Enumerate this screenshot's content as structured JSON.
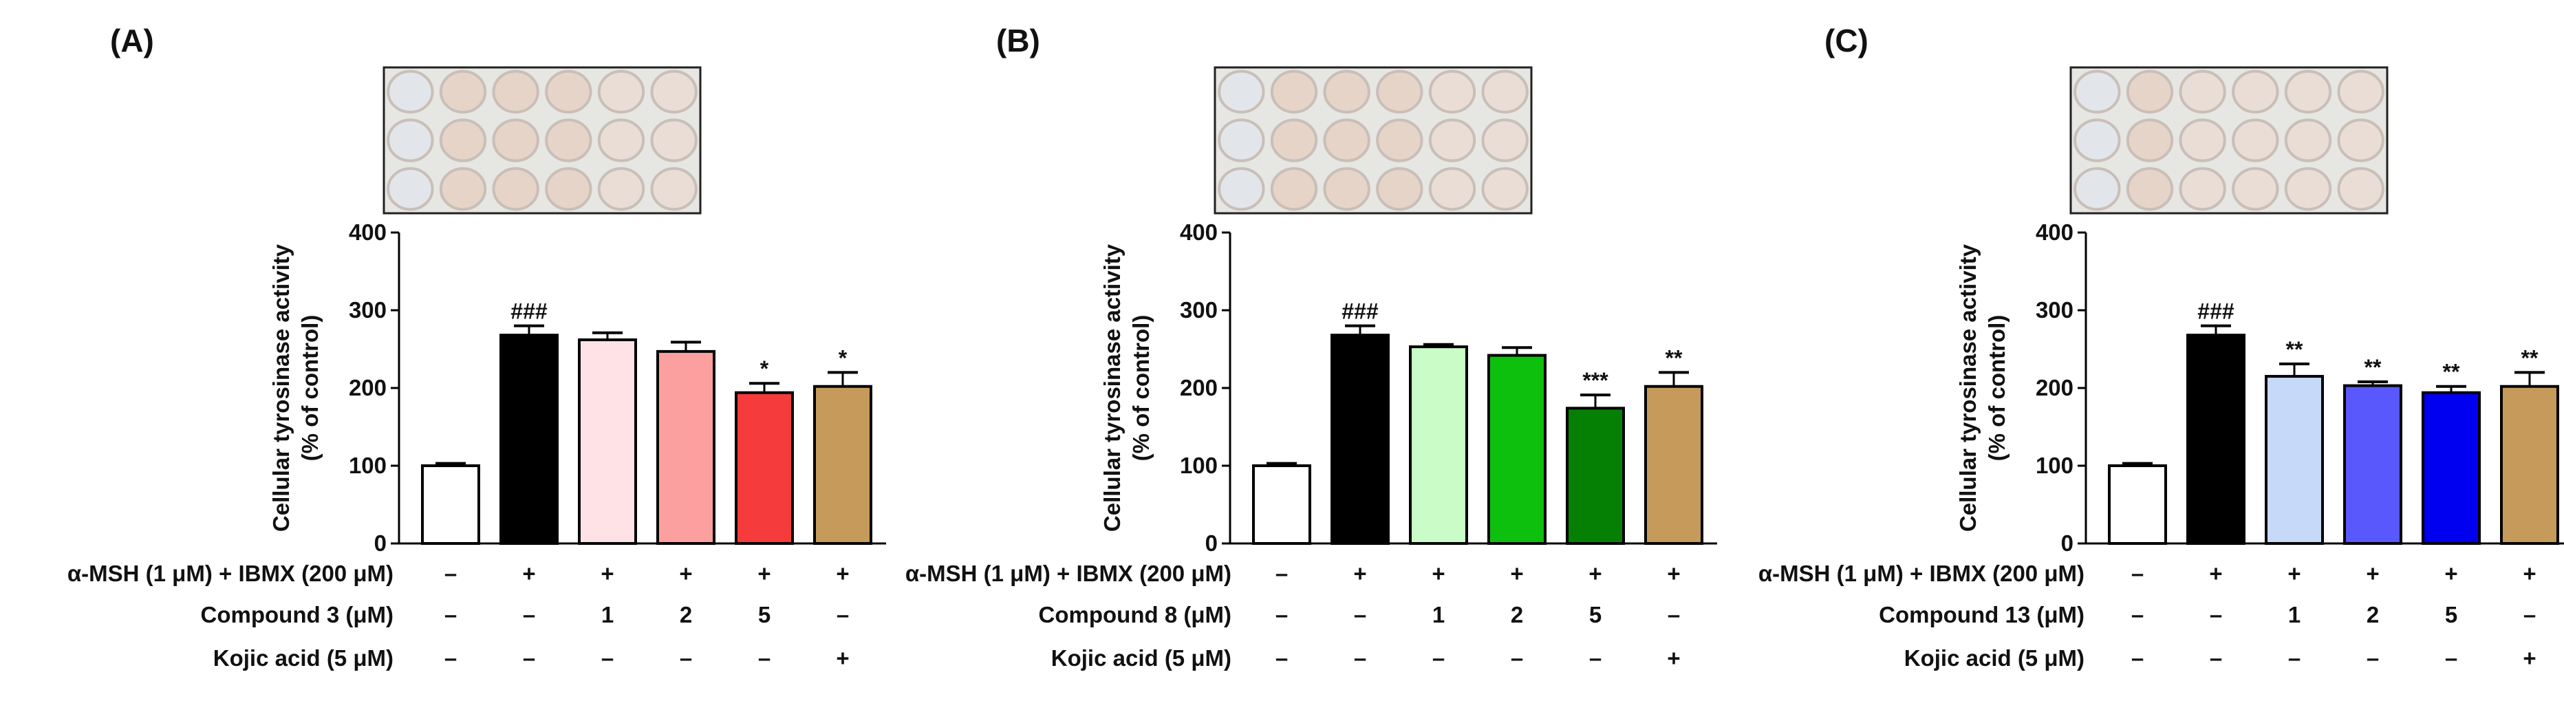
{
  "colors": {
    "axis": "#000000",
    "plate_bg": "#e6e6e3",
    "plate_border": "#222222",
    "well_rim": "#c9bfb8",
    "well_fill": "#eadcd5"
  },
  "chart_data": [
    {
      "type": "bar",
      "panel_label": "(A)",
      "title": "",
      "xlabel": "",
      "ylabel": "Cellular tyrosinase activity",
      "ylabel_sub": "(% of control)",
      "ylim": [
        0,
        400
      ],
      "yticks": [
        "0",
        "100",
        "200",
        "300",
        "400"
      ],
      "categories": [
        "Control",
        "α-MSH + IBMX",
        "Compound 3 1 μM",
        "Compound 3 2 μM",
        "Compound 3 5 μM",
        "Kojic acid 5 μM"
      ],
      "values": [
        100,
        268,
        262,
        247,
        194,
        202
      ],
      "errors": [
        3,
        12,
        9,
        12,
        12,
        18
      ],
      "bar_colors": [
        "#ffffff",
        "#000000",
        "#ffe2e6",
        "#fb9f9f",
        "#f53b3b",
        "#c59a5a"
      ],
      "annotations": [
        "",
        "###",
        "",
        "",
        "*",
        "*"
      ],
      "table": {
        "rows": [
          {
            "label": "α-MSH (1 μM) + IBMX (200 μM)",
            "cells": [
              "–",
              "+",
              "+",
              "+",
              "+",
              "+"
            ]
          },
          {
            "label": "Compound 3 (μM)",
            "cells": [
              "–",
              "–",
              "1",
              "2",
              "5",
              "–"
            ]
          },
          {
            "label": "Kojic acid (5 μM)",
            "cells": [
              "–",
              "–",
              "–",
              "–",
              "–",
              "+"
            ]
          }
        ]
      }
    },
    {
      "type": "bar",
      "panel_label": "(B)",
      "title": "",
      "xlabel": "",
      "ylabel": "Cellular tyrosinase activity",
      "ylabel_sub": "(% of control)",
      "ylim": [
        0,
        400
      ],
      "yticks": [
        "0",
        "100",
        "200",
        "300",
        "400"
      ],
      "categories": [
        "Control",
        "α-MSH + IBMX",
        "Compound 8 1 μM",
        "Compound 8 2 μM",
        "Compound 8 5 μM",
        "Kojic acid 5 μM"
      ],
      "values": [
        100,
        268,
        253,
        242,
        174,
        202
      ],
      "errors": [
        3,
        12,
        3,
        10,
        17,
        18
      ],
      "bar_colors": [
        "#ffffff",
        "#000000",
        "#c9fcc6",
        "#0ec00e",
        "#058005",
        "#c59a5a"
      ],
      "annotations": [
        "",
        "###",
        "",
        "",
        "***",
        "**"
      ],
      "table": {
        "rows": [
          {
            "label": "α-MSH (1 μM) + IBMX (200 μM)",
            "cells": [
              "–",
              "+",
              "+",
              "+",
              "+",
              "+"
            ]
          },
          {
            "label": "Compound 8 (μM)",
            "cells": [
              "–",
              "–",
              "1",
              "2",
              "5",
              "–"
            ]
          },
          {
            "label": "Kojic acid (5 μM)",
            "cells": [
              "–",
              "–",
              "–",
              "–",
              "–",
              "+"
            ]
          }
        ]
      }
    },
    {
      "type": "bar",
      "panel_label": "(C)",
      "title": "",
      "xlabel": "",
      "ylabel": "Cellular tyrosinase activity",
      "ylabel_sub": "(% of control)",
      "ylim": [
        0,
        400
      ],
      "yticks": [
        "0",
        "100",
        "200",
        "300",
        "400"
      ],
      "categories": [
        "Control",
        "α-MSH + IBMX",
        "Compound 13 1 μM",
        "Compound 13 2 μM",
        "Compound 13 5 μM",
        "Kojic acid 5 μM"
      ],
      "values": [
        100,
        268,
        215,
        203,
        194,
        202
      ],
      "errors": [
        3,
        12,
        16,
        5,
        8,
        18
      ],
      "bar_colors": [
        "#ffffff",
        "#000000",
        "#c6d9f8",
        "#5858fc",
        "#0000f0",
        "#c59a5a"
      ],
      "annotations": [
        "",
        "###",
        "**",
        "**",
        "**",
        "**"
      ],
      "table": {
        "rows": [
          {
            "label": "α-MSH (1 μM) + IBMX (200 μM)",
            "cells": [
              "–",
              "+",
              "+",
              "+",
              "+",
              "+"
            ]
          },
          {
            "label": "Compound 13 (μM)",
            "cells": [
              "–",
              "–",
              "1",
              "2",
              "5",
              "–"
            ]
          },
          {
            "label": "Kojic acid (5 μM)",
            "cells": [
              "–",
              "–",
              "–",
              "–",
              "–",
              "+"
            ]
          }
        ]
      }
    }
  ]
}
